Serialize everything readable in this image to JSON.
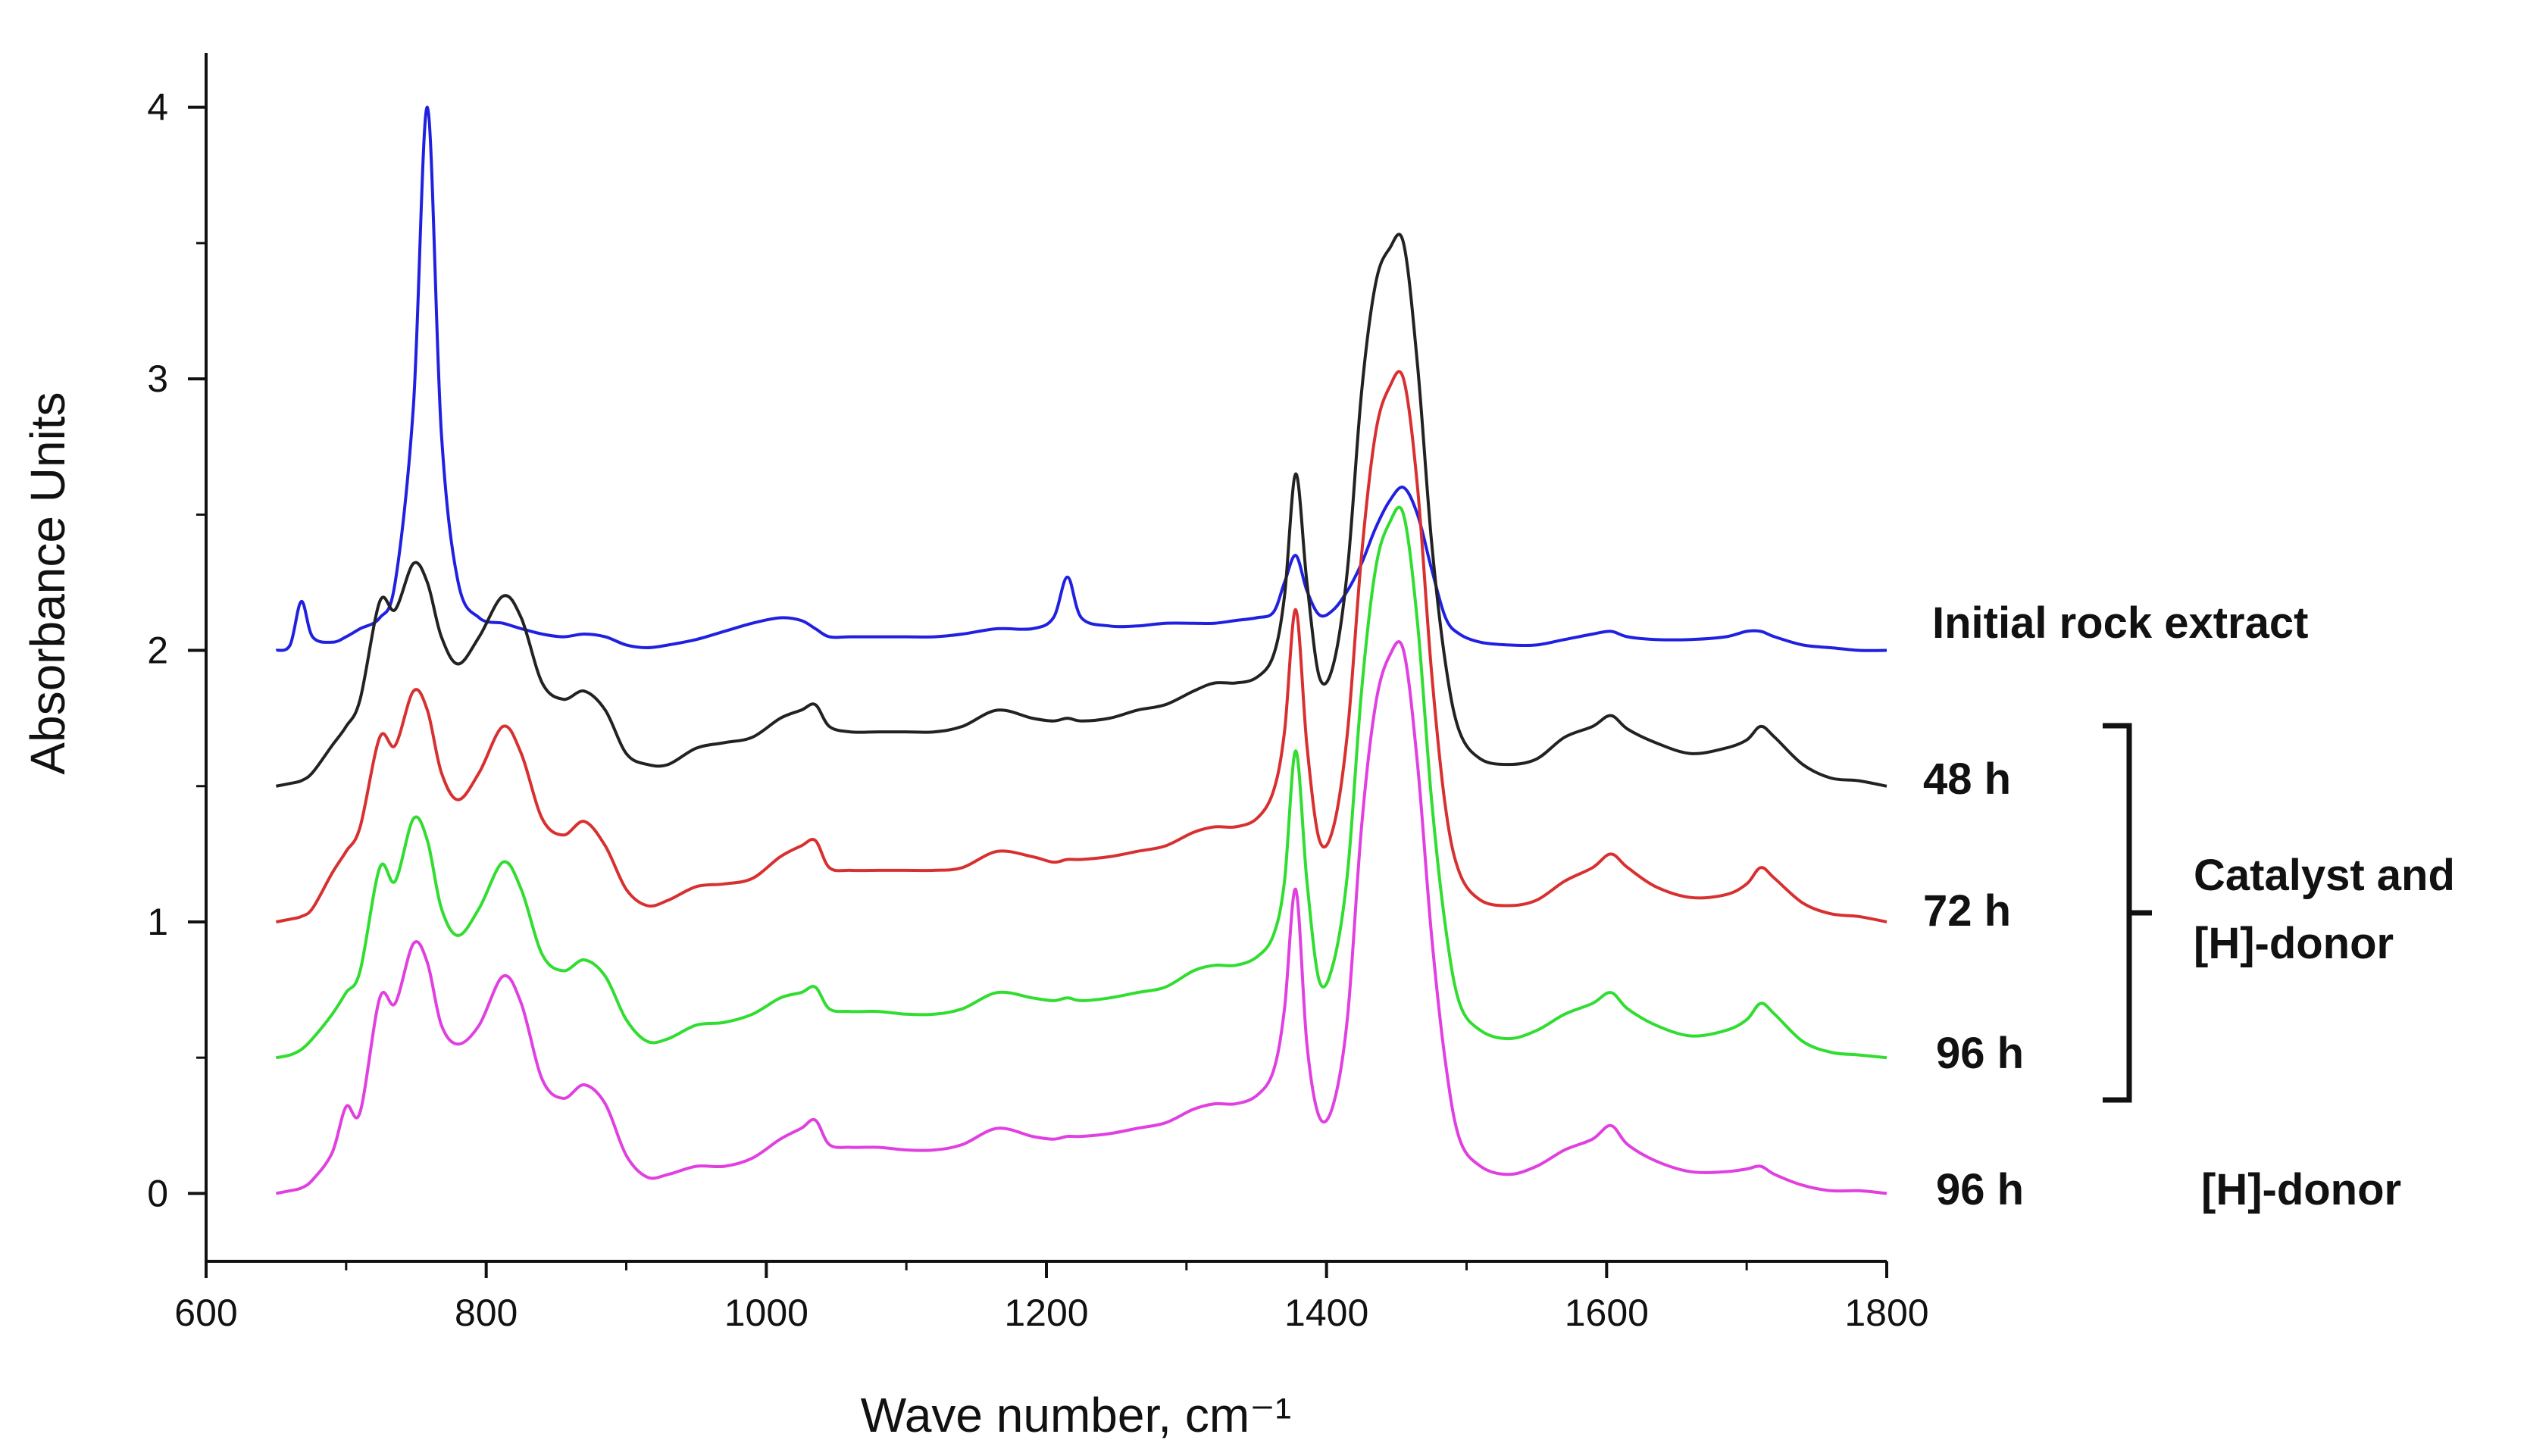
{
  "chart_data": {
    "type": "line",
    "title": "",
    "xlabel": "Wave number, cm⁻¹",
    "ylabel": "Absorbance Units",
    "xlim": [
      600,
      1800
    ],
    "ylim": [
      -0.25,
      4.2
    ],
    "xticks": [
      600,
      800,
      1000,
      1200,
      1400,
      1600,
      1800
    ],
    "yticks": [
      0,
      1,
      2,
      3,
      4
    ],
    "grid": false,
    "x": [
      650,
      660,
      668,
      676,
      690,
      700,
      710,
      724,
      735,
      748,
      758,
      768,
      780,
      795,
      812,
      825,
      840,
      855,
      870,
      885,
      900,
      915,
      930,
      950,
      970,
      990,
      1010,
      1025,
      1035,
      1045,
      1060,
      1080,
      1100,
      1120,
      1140,
      1165,
      1190,
      1205,
      1215,
      1225,
      1245,
      1265,
      1285,
      1305,
      1320,
      1335,
      1350,
      1362,
      1370,
      1378,
      1386,
      1395,
      1405,
      1415,
      1425,
      1435,
      1445,
      1455,
      1465,
      1475,
      1485,
      1495,
      1510,
      1530,
      1550,
      1570,
      1590,
      1603,
      1615,
      1635,
      1660,
      1685,
      1700,
      1710,
      1720,
      1740,
      1760,
      1780,
      1800
    ],
    "series": [
      {
        "name": "Initial rock extract",
        "color": "#2020e0",
        "values": [
          2.0,
          2.02,
          2.18,
          2.05,
          2.03,
          2.05,
          2.08,
          2.12,
          2.25,
          2.9,
          4.0,
          2.8,
          2.25,
          2.12,
          2.1,
          2.08,
          2.06,
          2.05,
          2.06,
          2.05,
          2.02,
          2.01,
          2.02,
          2.04,
          2.07,
          2.1,
          2.12,
          2.11,
          2.08,
          2.05,
          2.05,
          2.05,
          2.05,
          2.05,
          2.06,
          2.08,
          2.08,
          2.12,
          2.27,
          2.12,
          2.09,
          2.09,
          2.1,
          2.1,
          2.1,
          2.11,
          2.12,
          2.14,
          2.25,
          2.35,
          2.22,
          2.13,
          2.15,
          2.22,
          2.32,
          2.45,
          2.55,
          2.6,
          2.5,
          2.3,
          2.12,
          2.06,
          2.03,
          2.02,
          2.02,
          2.04,
          2.06,
          2.07,
          2.05,
          2.04,
          2.04,
          2.05,
          2.07,
          2.07,
          2.05,
          2.02,
          2.01,
          2.0,
          2.0
        ]
      },
      {
        "name": "48 h",
        "color": "#222222",
        "values": [
          1.5,
          1.51,
          1.52,
          1.55,
          1.65,
          1.72,
          1.82,
          2.18,
          2.15,
          2.32,
          2.25,
          2.05,
          1.95,
          2.05,
          2.2,
          2.12,
          1.88,
          1.82,
          1.85,
          1.78,
          1.62,
          1.58,
          1.58,
          1.64,
          1.66,
          1.68,
          1.75,
          1.78,
          1.8,
          1.72,
          1.7,
          1.7,
          1.7,
          1.7,
          1.72,
          1.78,
          1.75,
          1.74,
          1.75,
          1.74,
          1.75,
          1.78,
          1.8,
          1.85,
          1.88,
          1.88,
          1.9,
          1.98,
          2.2,
          2.65,
          2.25,
          1.9,
          1.95,
          2.3,
          2.95,
          3.35,
          3.48,
          3.5,
          3.05,
          2.4,
          1.95,
          1.7,
          1.6,
          1.58,
          1.6,
          1.68,
          1.72,
          1.76,
          1.71,
          1.66,
          1.62,
          1.64,
          1.67,
          1.72,
          1.68,
          1.58,
          1.53,
          1.52,
          1.5
        ]
      },
      {
        "name": "72 h",
        "color": "#d83030",
        "values": [
          1.0,
          1.01,
          1.02,
          1.05,
          1.18,
          1.26,
          1.35,
          1.68,
          1.65,
          1.85,
          1.78,
          1.55,
          1.45,
          1.55,
          1.72,
          1.62,
          1.38,
          1.32,
          1.37,
          1.28,
          1.12,
          1.06,
          1.08,
          1.13,
          1.14,
          1.16,
          1.24,
          1.28,
          1.3,
          1.2,
          1.19,
          1.19,
          1.19,
          1.19,
          1.2,
          1.26,
          1.24,
          1.22,
          1.23,
          1.23,
          1.24,
          1.26,
          1.28,
          1.33,
          1.35,
          1.35,
          1.38,
          1.48,
          1.7,
          2.15,
          1.65,
          1.3,
          1.35,
          1.7,
          2.35,
          2.8,
          2.97,
          3.0,
          2.6,
          1.92,
          1.42,
          1.18,
          1.08,
          1.06,
          1.08,
          1.15,
          1.2,
          1.25,
          1.2,
          1.13,
          1.09,
          1.1,
          1.14,
          1.2,
          1.16,
          1.07,
          1.03,
          1.02,
          1.0
        ]
      },
      {
        "name": "96 h",
        "color": "#30dd30",
        "values": [
          0.5,
          0.51,
          0.53,
          0.57,
          0.66,
          0.74,
          0.82,
          1.2,
          1.15,
          1.38,
          1.3,
          1.05,
          0.95,
          1.05,
          1.22,
          1.12,
          0.88,
          0.82,
          0.86,
          0.8,
          0.64,
          0.56,
          0.57,
          0.62,
          0.63,
          0.66,
          0.72,
          0.74,
          0.76,
          0.68,
          0.67,
          0.67,
          0.66,
          0.66,
          0.68,
          0.74,
          0.72,
          0.71,
          0.72,
          0.71,
          0.72,
          0.74,
          0.76,
          0.82,
          0.84,
          0.84,
          0.87,
          0.95,
          1.15,
          1.63,
          1.15,
          0.78,
          0.85,
          1.18,
          1.85,
          2.3,
          2.47,
          2.5,
          2.1,
          1.45,
          0.98,
          0.7,
          0.6,
          0.57,
          0.6,
          0.66,
          0.7,
          0.74,
          0.68,
          0.62,
          0.58,
          0.6,
          0.64,
          0.7,
          0.66,
          0.56,
          0.52,
          0.51,
          0.5
        ]
      },
      {
        "name": "96 h",
        "color": "#e040e0",
        "values": [
          0.0,
          0.01,
          0.02,
          0.05,
          0.15,
          0.32,
          0.3,
          0.72,
          0.7,
          0.92,
          0.85,
          0.62,
          0.55,
          0.62,
          0.8,
          0.7,
          0.42,
          0.35,
          0.4,
          0.33,
          0.14,
          0.06,
          0.07,
          0.1,
          0.1,
          0.13,
          0.2,
          0.24,
          0.27,
          0.18,
          0.17,
          0.17,
          0.16,
          0.16,
          0.18,
          0.24,
          0.21,
          0.2,
          0.21,
          0.21,
          0.22,
          0.24,
          0.26,
          0.31,
          0.33,
          0.33,
          0.36,
          0.45,
          0.68,
          1.12,
          0.55,
          0.28,
          0.33,
          0.65,
          1.35,
          1.8,
          1.98,
          2.0,
          1.58,
          0.95,
          0.48,
          0.2,
          0.1,
          0.07,
          0.1,
          0.16,
          0.2,
          0.25,
          0.18,
          0.12,
          0.08,
          0.08,
          0.09,
          0.1,
          0.07,
          0.03,
          0.01,
          0.01,
          0.0
        ]
      }
    ],
    "series_labels": [
      "Initial rock extract",
      "48 h",
      "72 h",
      "96 h",
      "96 h"
    ],
    "annotations": {
      "bracket_label_line1": "Catalyst and",
      "bracket_label_line2": "[H]-donor",
      "bottom_condition": "[H]-donor"
    }
  }
}
